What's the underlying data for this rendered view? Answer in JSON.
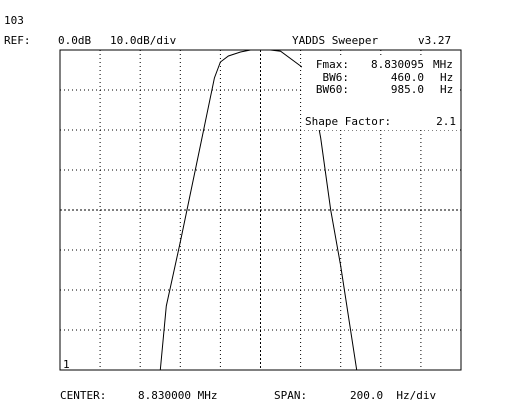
{
  "header": {
    "screen_id": "103",
    "ref_label": "REF:",
    "ref_value": "0.0dB",
    "scale": "10.0dB/div",
    "app_title": "YADDS Sweeper",
    "app_version": "v3.27"
  },
  "readouts": {
    "fmax_label": "Fmax:",
    "fmax_value": "8.830095",
    "fmax_unit": "MHz",
    "bw6_label": "BW6:",
    "bw6_value": "460.0",
    "bw6_unit": "Hz",
    "bw60_label": "BW60:",
    "bw60_value": "985.0",
    "bw60_unit": "Hz",
    "shape_label": "Shape Factor:",
    "shape_value": "2.1"
  },
  "marker_label": "1",
  "footer": {
    "center_label": "CENTER:",
    "center_value": "8.830000 MHz",
    "span_label": "SPAN:",
    "span_value": "200.0  Hz/div"
  },
  "colors": {
    "background": "#ffffff",
    "trace": "#000000",
    "grid": "#000000"
  },
  "chart_data": {
    "type": "line",
    "xlabel": "",
    "ylabel": "",
    "xlim": [
      -1000,
      1000
    ],
    "ylim": [
      -80,
      0
    ],
    "grid": true,
    "x": [
      -1000,
      -500,
      -470,
      -400,
      -300,
      -230,
      -200,
      -160,
      -100,
      -50,
      0,
      50,
      100,
      200,
      240,
      300,
      350,
      400,
      480,
      500,
      1000
    ],
    "y": [
      -80,
      -80,
      -64,
      -48,
      -24,
      -7,
      -3,
      -1.5,
      -0.5,
      0,
      0,
      0,
      -0.3,
      -4,
      -5.5,
      -22,
      -40,
      -54,
      -80,
      -80,
      -80
    ]
  }
}
